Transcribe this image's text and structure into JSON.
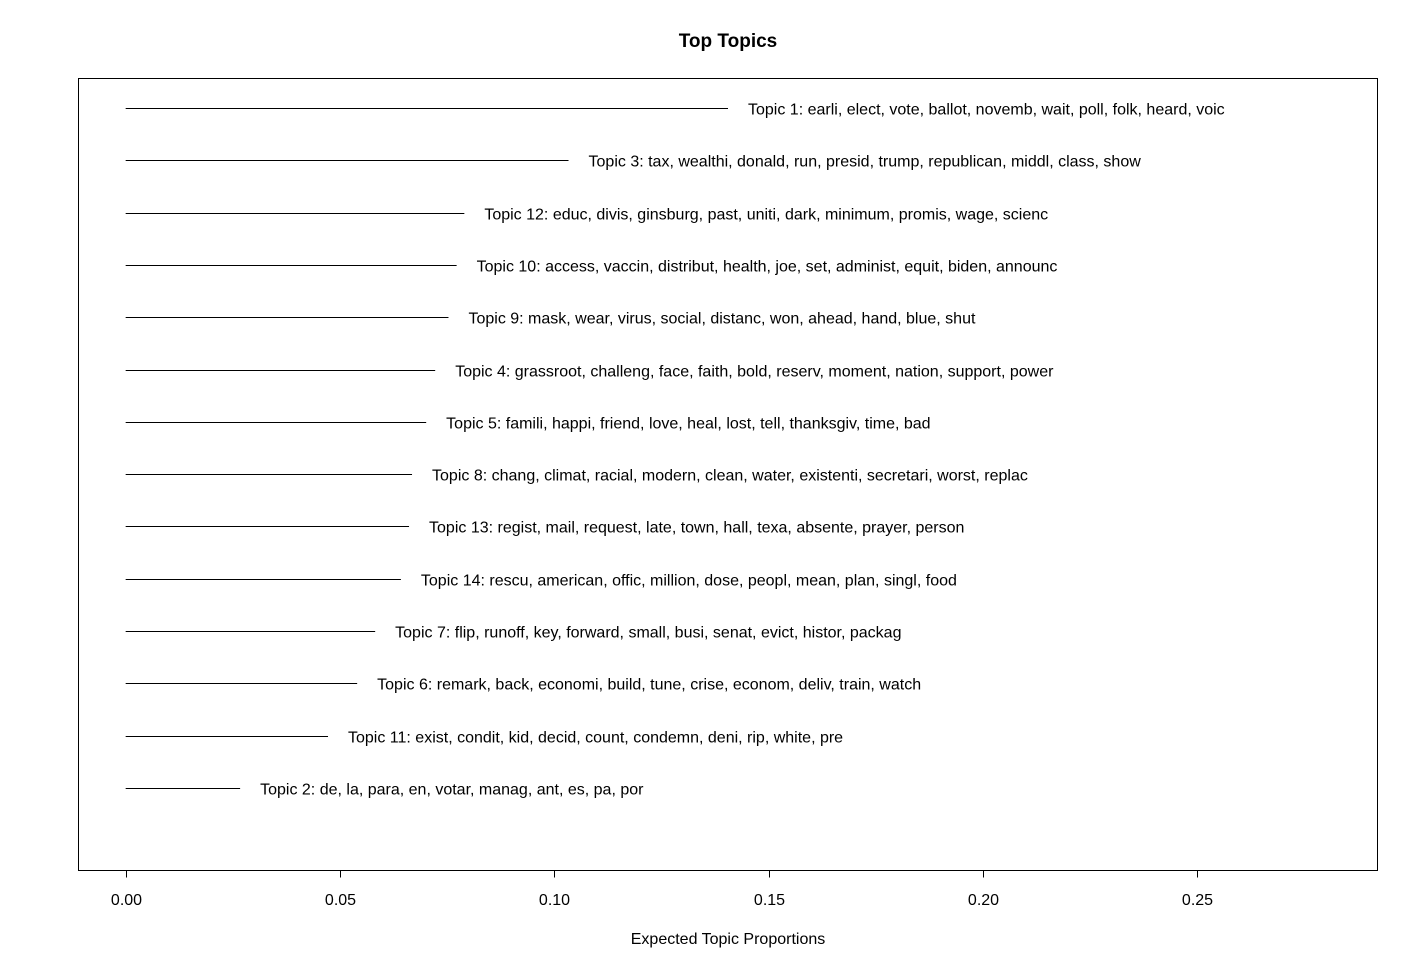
{
  "chart_data": {
    "type": "bar",
    "title": "Top Topics",
    "xlabel": "Expected Topic Proportions",
    "ylabel": "",
    "xlim": [
      -0.011,
      0.292
    ],
    "xticks": [
      0.0,
      0.05,
      0.1,
      0.15,
      0.2,
      0.25
    ],
    "xtick_labels": [
      "0.00",
      "0.05",
      "0.10",
      "0.15",
      "0.20",
      "0.25"
    ],
    "grid": false,
    "legend": "none",
    "categories": [
      "Topic 1: earli, elect, vote, ballot, novemb, wait, poll, folk, heard, voic",
      "Topic 3: tax, wealthi, donald, run, presid, trump, republican, middl, class, show",
      "Topic 12: educ, divis, ginsburg, past, uniti, dark, minimum, promis, wage, scienc",
      "Topic 10: access, vaccin, distribut, health, joe, set, administ, equit, biden, announc",
      "Topic 9: mask, wear, virus, social, distanc, won, ahead, hand, blue, shut",
      "Topic 4: grassroot, challeng, face, faith, bold, reserv, moment, nation, support, power",
      "Topic 5: famili, happi, friend, love, heal, lost, tell, thanksgiv, time, bad",
      "Topic 8: chang, climat, racial, modern, clean, water, existenti, secretari, worst, replac",
      "Topic 13: regist, mail, request, late, town, hall, texa, absente, prayer, person",
      "Topic 14: rescu, american, offic, million, dose, peopl, mean, plan, singl, food",
      "Topic 7: flip, runoff, key, forward, small, busi, senat, evict, histor, packag",
      "Topic 6: remark, back, economi, build, tune, crise, econom, deliv, train, watch",
      "Topic 11: exist, condit, kid, decid, count, condemn, deni, rip, white, pre",
      "Topic 2: de, la, para, en, votar, manag, ant, es, pa, por"
    ],
    "values": [
      0.1405,
      0.1033,
      0.079,
      0.0772,
      0.0753,
      0.0722,
      0.0701,
      0.0668,
      0.0661,
      0.0642,
      0.0582,
      0.054,
      0.0472,
      0.0267
    ]
  }
}
